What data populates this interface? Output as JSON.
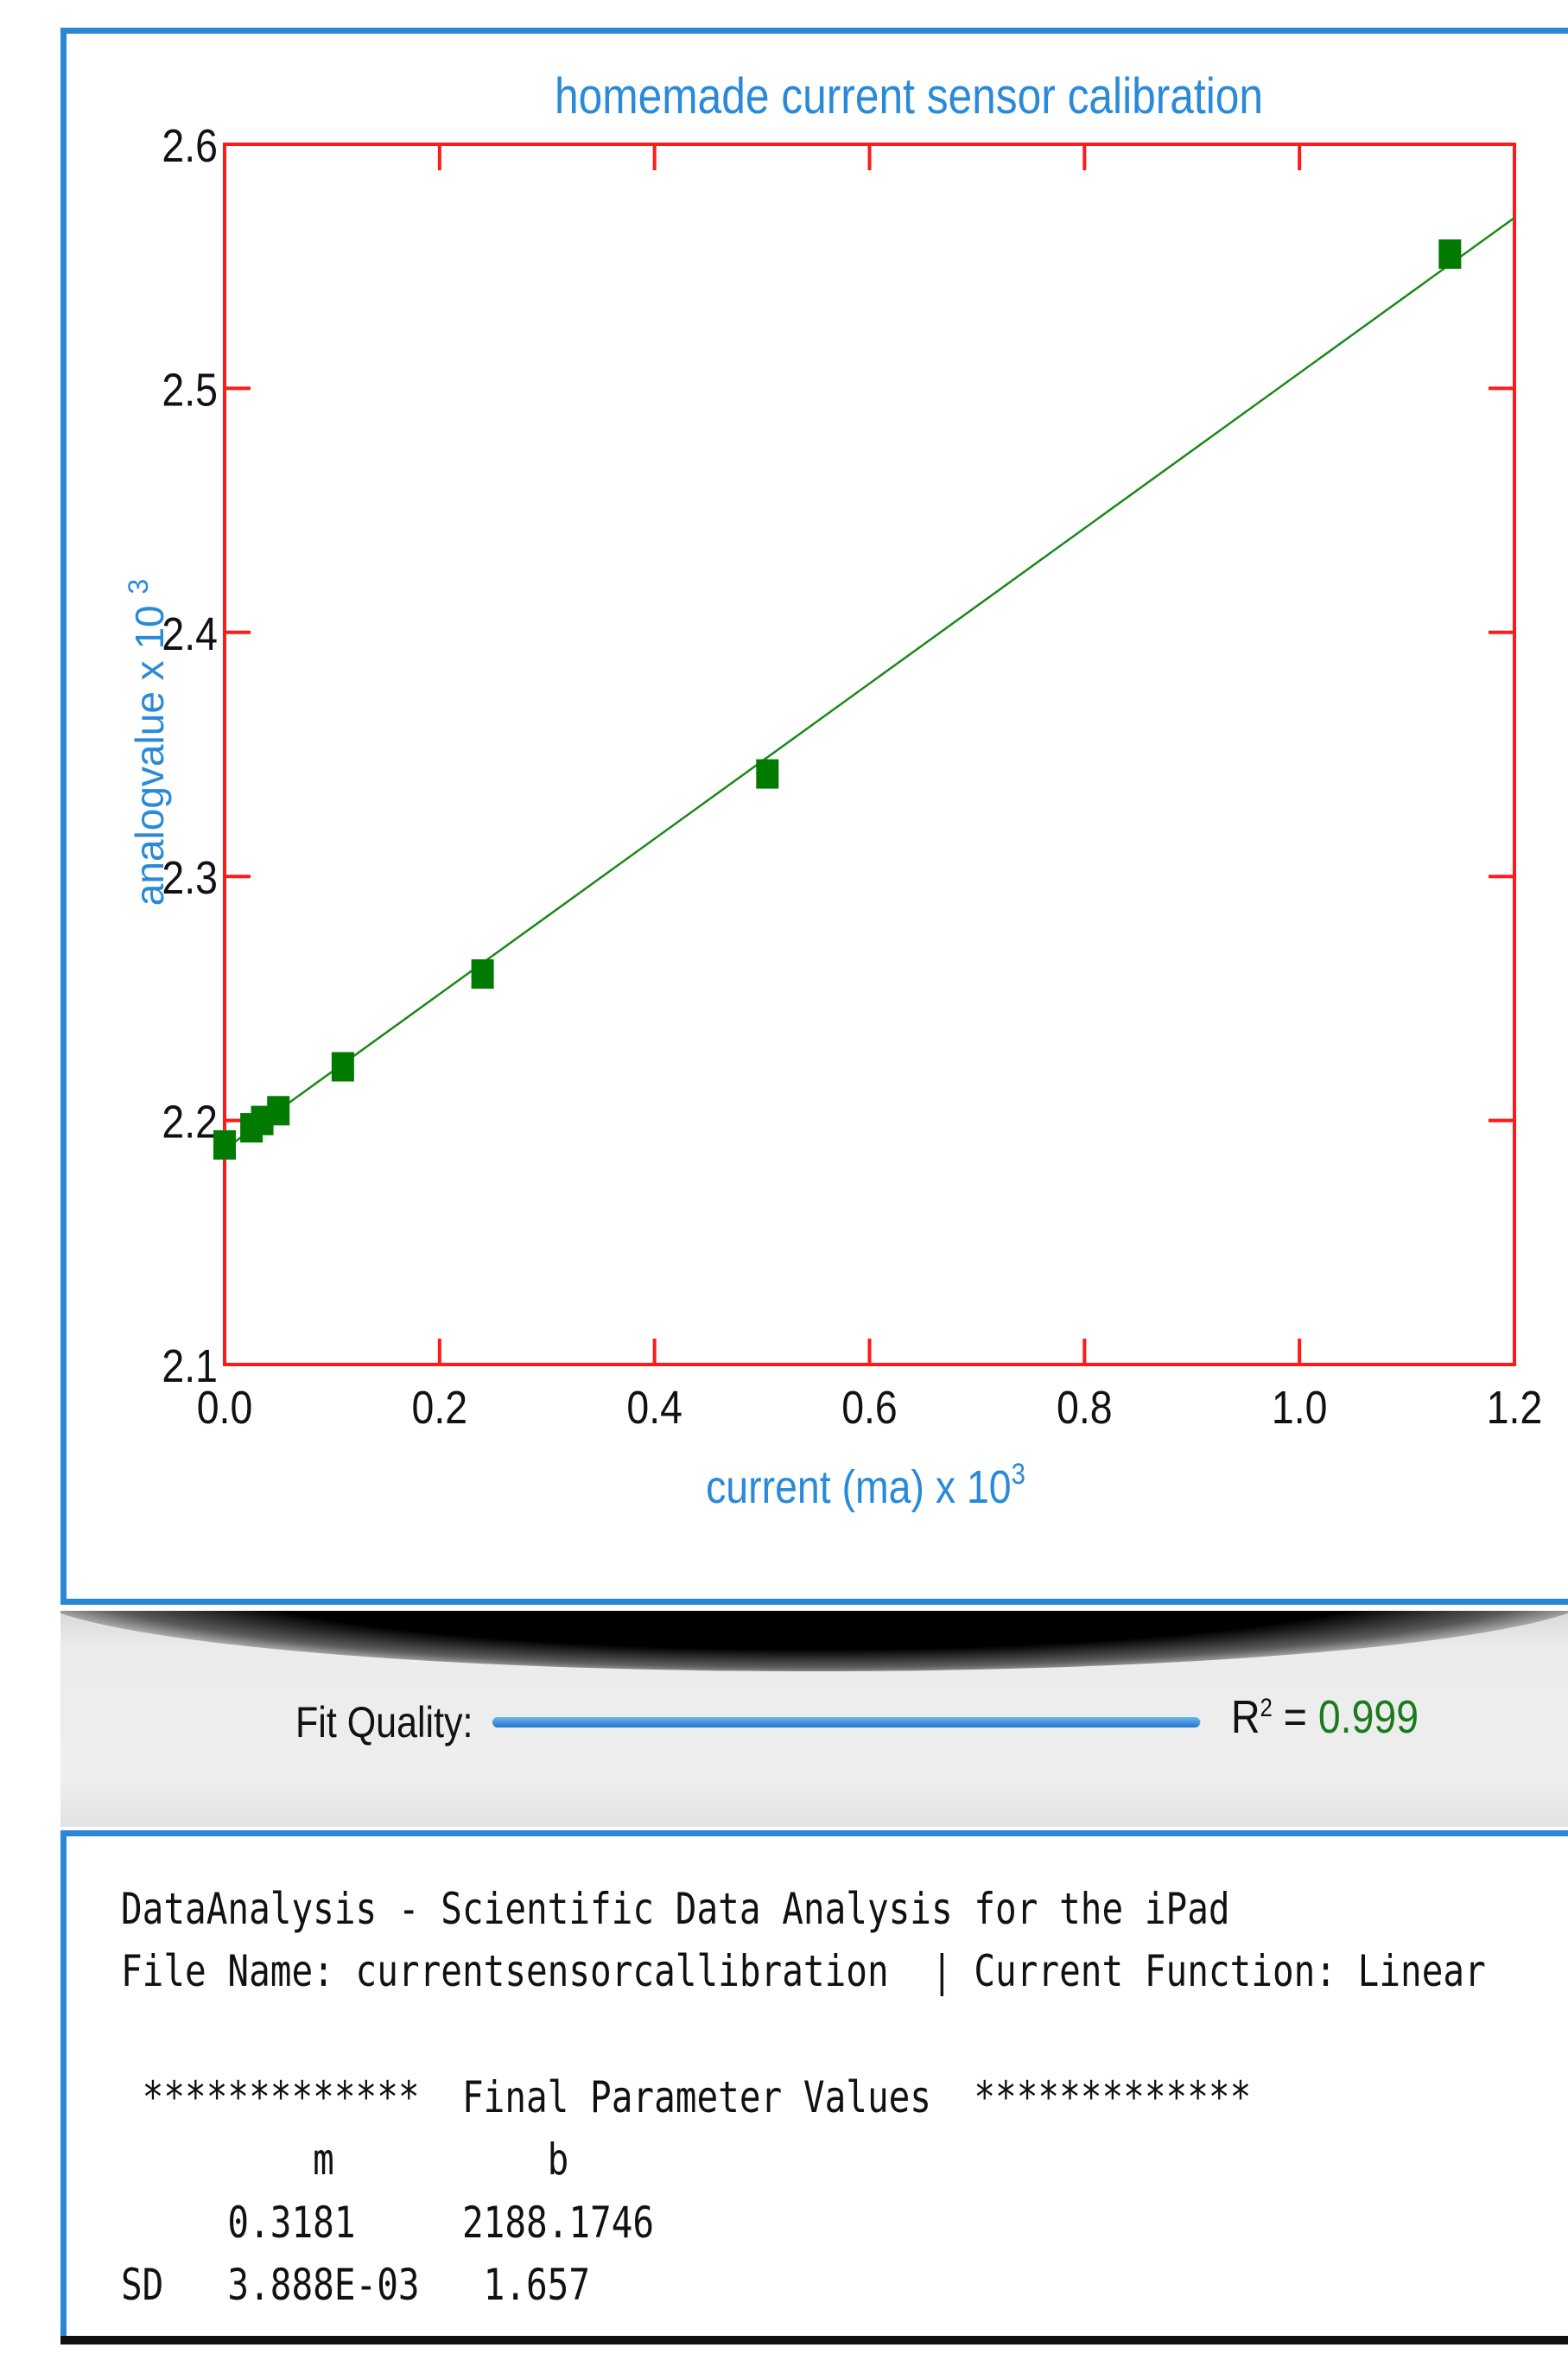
{
  "chart_data": {
    "type": "scatter",
    "title": "homemade current sensor calibration",
    "xlabel": "current (ma) x 10",
    "xlabel_exponent": "3",
    "ylabel": "analogvalue x 10",
    "ylabel_exponent": "3",
    "xlim": [
      0.0,
      1.2
    ],
    "ylim": [
      2.1,
      2.6
    ],
    "x_ticks": [
      "0.0",
      "0.2",
      "0.4",
      "0.6",
      "0.8",
      "1.0",
      "1.2"
    ],
    "y_ticks": [
      "2.1",
      "2.2",
      "2.3",
      "2.4",
      "2.5",
      "2.6"
    ],
    "grid": false,
    "series": [
      {
        "x": [
          0.0,
          0.025,
          0.035,
          0.05,
          0.11,
          0.24,
          0.505,
          1.14
        ],
        "y": [
          2.19,
          2.197,
          2.2,
          2.204,
          2.222,
          2.26,
          2.342,
          2.555
        ]
      }
    ],
    "fit_line": {
      "x": [
        0.0,
        1.2
      ],
      "y": [
        2.1882,
        2.5699
      ]
    },
    "colors": {
      "points": "#007a00",
      "fit": "#1a8a1a",
      "frame": "#ff1a1a",
      "labels": "#2a8ad8"
    }
  },
  "fit_quality": {
    "label": "Fit Quality:",
    "r2_symbol": "R",
    "r2_exponent": "2",
    "r2_equals": "=",
    "r2_value": "0.999",
    "bar_fraction": 0.999
  },
  "report": {
    "lines": [
      "DataAnalysis - Scientific Data Analysis for the iPad",
      "File Name: currentsensorcallibration  | Current Function: Linear",
      "",
      " *************  Final Parameter Values  *************",
      "         m          b",
      "     0.3181     2188.1746",
      "SD   3.888E-03   1.657"
    ]
  }
}
